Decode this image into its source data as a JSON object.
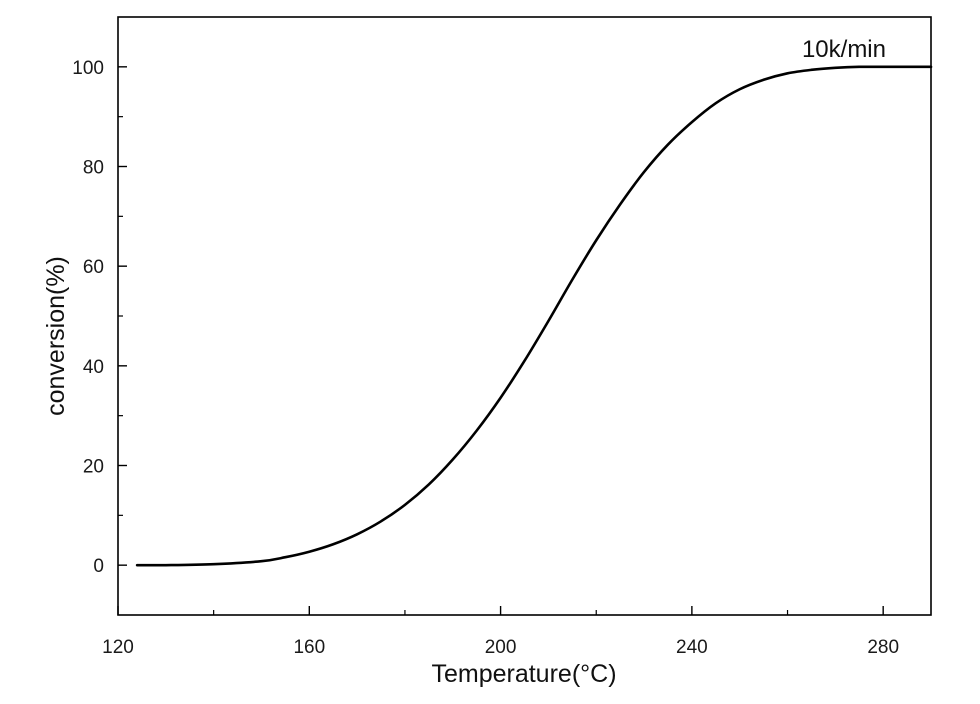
{
  "chart_data": {
    "type": "line",
    "xlabel": "Temperature(°C)",
    "ylabel": "conversion(%)",
    "xlim": [
      120,
      290
    ],
    "ylim": [
      -10,
      110
    ],
    "xticks": [
      120,
      160,
      200,
      240,
      280
    ],
    "yticks": [
      0,
      20,
      40,
      60,
      80,
      100
    ],
    "grid": false,
    "series": [
      {
        "name": "10k/min",
        "color": "#000000",
        "x": [
          124,
          130,
          140,
          150,
          155,
          160,
          165,
          170,
          175,
          180,
          185,
          190,
          195,
          200,
          205,
          210,
          215,
          220,
          225,
          230,
          235,
          240,
          245,
          250,
          255,
          260,
          265,
          270,
          275,
          280,
          285,
          290
        ],
        "y": [
          0,
          0,
          0.2,
          0.8,
          1.6,
          2.7,
          4.2,
          6.2,
          8.8,
          12.1,
          16.2,
          21.2,
          27.0,
          33.6,
          41.0,
          49.0,
          57.3,
          65.2,
          72.4,
          78.9,
          84.4,
          88.9,
          92.7,
          95.5,
          97.4,
          98.7,
          99.4,
          99.8,
          100,
          100,
          100,
          100
        ]
      }
    ]
  }
}
